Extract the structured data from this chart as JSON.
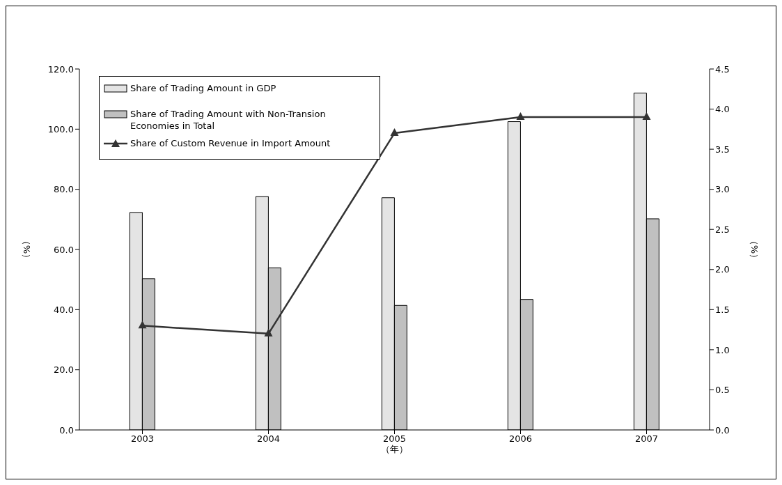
{
  "chart_data": {
    "type": "bar",
    "categories": [
      "2003",
      "2004",
      "2005",
      "2006",
      "2007"
    ],
    "xlabel": "（年）",
    "ylabel": "（%）",
    "y2label": "（%）",
    "series": [
      {
        "name": "Share of Trading Amount in GDP",
        "color": "#e4e4e4",
        "values": [
          72.3,
          77.6,
          77.2,
          102.5,
          112.0
        ]
      },
      {
        "name": "Share of Trading Amount with Non-Transion Economies in Total",
        "color": "#c0c0c0",
        "values": [
          50.3,
          53.9,
          41.4,
          43.4,
          70.2
        ]
      },
      {
        "name": "Share of Custom Revenue in Import Amount",
        "type": "line",
        "axis": "y2",
        "color": "#333333",
        "marker": "triangle",
        "values": [
          1.3,
          1.2,
          3.7,
          3.9,
          3.9
        ]
      }
    ],
    "ylim": [
      0,
      120
    ],
    "yticks": [
      {
        "value": 0,
        "label": "0.0"
      },
      {
        "value": 20,
        "label": "20.0"
      },
      {
        "value": 40,
        "label": "40.0"
      },
      {
        "value": 60,
        "label": "60.0"
      },
      {
        "value": 80,
        "label": "80.0"
      },
      {
        "value": 100,
        "label": "100.0"
      },
      {
        "value": 120,
        "label": "120.0"
      }
    ],
    "y2lim": [
      0,
      4.5
    ],
    "y2ticks": [
      {
        "value": 0,
        "label": "0.0"
      },
      {
        "value": 0.5,
        "label": "0.5"
      },
      {
        "value": 1,
        "label": "1.0"
      },
      {
        "value": 1.5,
        "label": "1.5"
      },
      {
        "value": 2,
        "label": "2.0"
      },
      {
        "value": 2.5,
        "label": "2.5"
      },
      {
        "value": 3,
        "label": "3.0"
      },
      {
        "value": 3.5,
        "label": "3.5"
      },
      {
        "value": 4,
        "label": "4.0"
      },
      {
        "value": 4.5,
        "label": "4.5"
      }
    ],
    "grid": false,
    "legend": "top left"
  }
}
